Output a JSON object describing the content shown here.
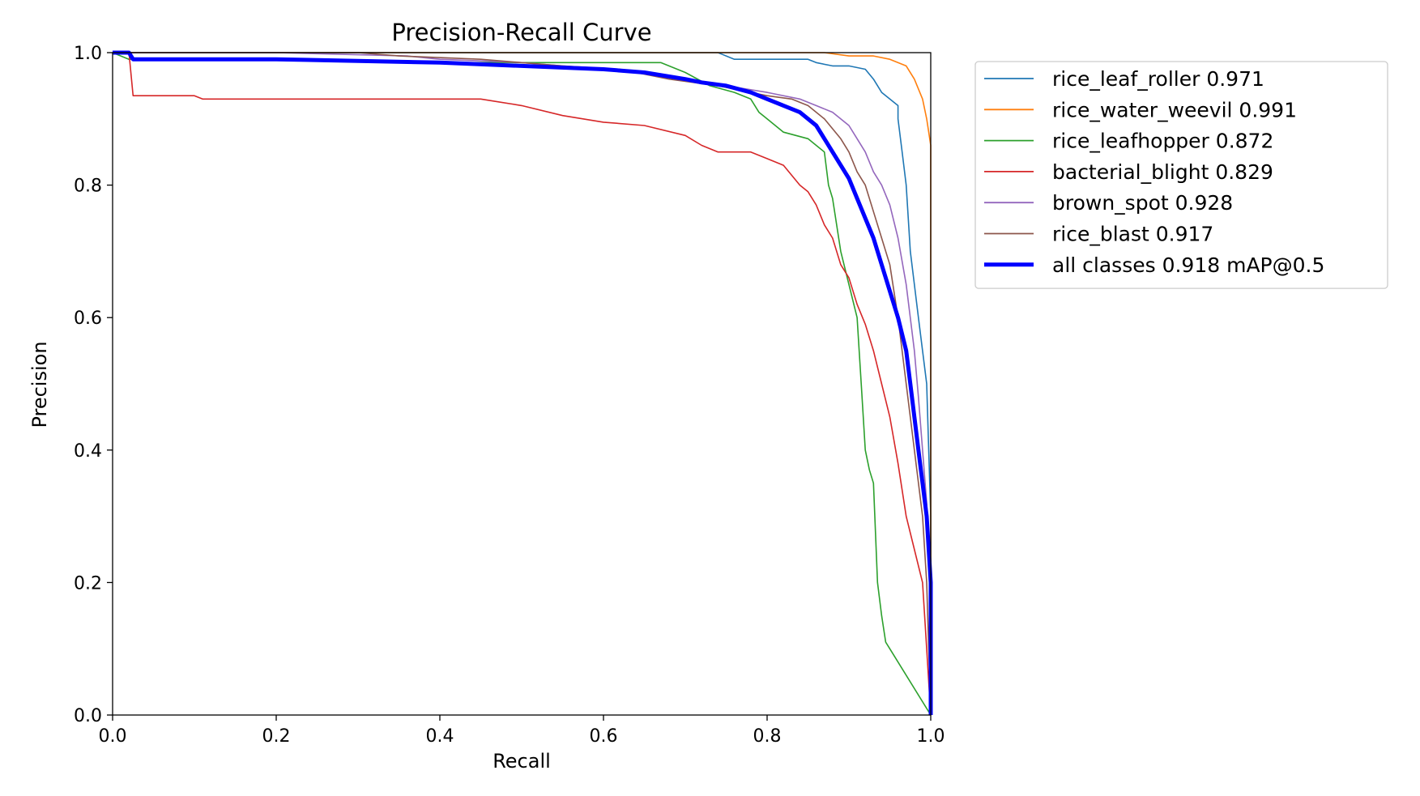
{
  "chart_data": {
    "type": "line",
    "title": "Precision-Recall Curve",
    "xlabel": "Recall",
    "ylabel": "Precision",
    "xlim": [
      0.0,
      1.0
    ],
    "ylim": [
      0.0,
      1.0
    ],
    "xticks": [
      "0.0",
      "0.2",
      "0.4",
      "0.6",
      "0.8",
      "1.0"
    ],
    "yticks": [
      "0.0",
      "0.2",
      "0.4",
      "0.6",
      "0.8",
      "1.0"
    ],
    "grid": false,
    "legend_position": "outside-right-top",
    "series": [
      {
        "name": "rice_leaf_roller 0.971",
        "color": "#1f77b4",
        "width": "thin",
        "points": [
          [
            0.0,
            1.0
          ],
          [
            0.74,
            1.0
          ],
          [
            0.76,
            0.99
          ],
          [
            0.85,
            0.99
          ],
          [
            0.86,
            0.985
          ],
          [
            0.88,
            0.98
          ],
          [
            0.9,
            0.98
          ],
          [
            0.92,
            0.975
          ],
          [
            0.93,
            0.96
          ],
          [
            0.94,
            0.94
          ],
          [
            0.95,
            0.93
          ],
          [
            0.96,
            0.92
          ],
          [
            0.96,
            0.9
          ],
          [
            0.965,
            0.85
          ],
          [
            0.97,
            0.8
          ],
          [
            0.975,
            0.7
          ],
          [
            0.98,
            0.65
          ],
          [
            0.985,
            0.6
          ],
          [
            0.99,
            0.55
          ],
          [
            0.995,
            0.5
          ],
          [
            1.0,
            0.3
          ],
          [
            1.0,
            0.0
          ]
        ]
      },
      {
        "name": "rice_water_weevil 0.991",
        "color": "#ff7f0e",
        "width": "thin",
        "points": [
          [
            0.0,
            1.0
          ],
          [
            0.87,
            1.0
          ],
          [
            0.9,
            0.995
          ],
          [
            0.93,
            0.995
          ],
          [
            0.95,
            0.99
          ],
          [
            0.97,
            0.98
          ],
          [
            0.98,
            0.96
          ],
          [
            0.99,
            0.93
          ],
          [
            0.995,
            0.9
          ],
          [
            1.0,
            0.86
          ],
          [
            1.0,
            0.5
          ],
          [
            1.0,
            0.3
          ],
          [
            1.0,
            0.0
          ]
        ]
      },
      {
        "name": "rice_leafhopper 0.872",
        "color": "#2ca02c",
        "width": "thin",
        "points": [
          [
            0.0,
            1.0
          ],
          [
            0.02,
            0.99
          ],
          [
            0.2,
            0.99
          ],
          [
            0.4,
            0.985
          ],
          [
            0.6,
            0.985
          ],
          [
            0.67,
            0.985
          ],
          [
            0.7,
            0.97
          ],
          [
            0.73,
            0.95
          ],
          [
            0.76,
            0.94
          ],
          [
            0.78,
            0.93
          ],
          [
            0.79,
            0.91
          ],
          [
            0.8,
            0.9
          ],
          [
            0.82,
            0.88
          ],
          [
            0.85,
            0.87
          ],
          [
            0.86,
            0.86
          ],
          [
            0.87,
            0.85
          ],
          [
            0.875,
            0.8
          ],
          [
            0.88,
            0.78
          ],
          [
            0.89,
            0.7
          ],
          [
            0.9,
            0.65
          ],
          [
            0.91,
            0.6
          ],
          [
            0.915,
            0.5
          ],
          [
            0.92,
            0.4
          ],
          [
            0.925,
            0.37
          ],
          [
            0.93,
            0.35
          ],
          [
            0.935,
            0.2
          ],
          [
            0.94,
            0.15
          ],
          [
            0.945,
            0.11
          ],
          [
            0.95,
            0.1
          ],
          [
            1.0,
            0.0
          ]
        ]
      },
      {
        "name": "bacterial_blight 0.829",
        "color": "#d62728",
        "width": "thin",
        "points": [
          [
            0.0,
            1.0
          ],
          [
            0.02,
            1.0
          ],
          [
            0.025,
            0.935
          ],
          [
            0.1,
            0.935
          ],
          [
            0.11,
            0.93
          ],
          [
            0.45,
            0.93
          ],
          [
            0.5,
            0.92
          ],
          [
            0.55,
            0.905
          ],
          [
            0.6,
            0.895
          ],
          [
            0.65,
            0.89
          ],
          [
            0.7,
            0.875
          ],
          [
            0.72,
            0.86
          ],
          [
            0.74,
            0.85
          ],
          [
            0.78,
            0.85
          ],
          [
            0.8,
            0.84
          ],
          [
            0.82,
            0.83
          ],
          [
            0.84,
            0.8
          ],
          [
            0.85,
            0.79
          ],
          [
            0.86,
            0.77
          ],
          [
            0.87,
            0.74
          ],
          [
            0.88,
            0.72
          ],
          [
            0.89,
            0.68
          ],
          [
            0.9,
            0.66
          ],
          [
            0.91,
            0.62
          ],
          [
            0.92,
            0.59
          ],
          [
            0.93,
            0.55
          ],
          [
            0.94,
            0.5
          ],
          [
            0.95,
            0.45
          ],
          [
            0.96,
            0.38
          ],
          [
            0.97,
            0.3
          ],
          [
            0.98,
            0.25
          ],
          [
            0.99,
            0.2
          ],
          [
            0.995,
            0.1
          ],
          [
            1.0,
            0.0
          ]
        ]
      },
      {
        "name": "brown_spot 0.928",
        "color": "#9467bd",
        "width": "thin",
        "points": [
          [
            0.0,
            1.0
          ],
          [
            0.2,
            1.0
          ],
          [
            0.36,
            0.995
          ],
          [
            0.4,
            0.99
          ],
          [
            0.5,
            0.985
          ],
          [
            0.6,
            0.975
          ],
          [
            0.65,
            0.97
          ],
          [
            0.7,
            0.96
          ],
          [
            0.75,
            0.95
          ],
          [
            0.8,
            0.94
          ],
          [
            0.84,
            0.93
          ],
          [
            0.86,
            0.92
          ],
          [
            0.88,
            0.91
          ],
          [
            0.9,
            0.89
          ],
          [
            0.91,
            0.87
          ],
          [
            0.92,
            0.85
          ],
          [
            0.93,
            0.82
          ],
          [
            0.94,
            0.8
          ],
          [
            0.95,
            0.77
          ],
          [
            0.96,
            0.72
          ],
          [
            0.97,
            0.65
          ],
          [
            0.98,
            0.55
          ],
          [
            0.985,
            0.48
          ],
          [
            0.99,
            0.4
          ],
          [
            0.995,
            0.32
          ],
          [
            1.0,
            0.2
          ],
          [
            1.0,
            0.0
          ]
        ]
      },
      {
        "name": "rice_blast 0.917",
        "color": "#8c564b",
        "width": "thin",
        "points": [
          [
            0.0,
            1.0
          ],
          [
            0.3,
            1.0
          ],
          [
            0.35,
            0.995
          ],
          [
            0.45,
            0.99
          ],
          [
            0.55,
            0.98
          ],
          [
            0.62,
            0.975
          ],
          [
            0.68,
            0.96
          ],
          [
            0.74,
            0.95
          ],
          [
            0.78,
            0.94
          ],
          [
            0.8,
            0.935
          ],
          [
            0.83,
            0.93
          ],
          [
            0.85,
            0.92
          ],
          [
            0.87,
            0.9
          ],
          [
            0.89,
            0.87
          ],
          [
            0.9,
            0.85
          ],
          [
            0.91,
            0.82
          ],
          [
            0.92,
            0.8
          ],
          [
            0.93,
            0.76
          ],
          [
            0.94,
            0.72
          ],
          [
            0.95,
            0.68
          ],
          [
            0.96,
            0.6
          ],
          [
            0.97,
            0.5
          ],
          [
            0.98,
            0.4
          ],
          [
            0.99,
            0.3
          ],
          [
            0.995,
            0.2
          ],
          [
            1.0,
            0.0
          ]
        ]
      },
      {
        "name": "all classes 0.918 mAP@0.5",
        "color": "#0000ff",
        "width": "thick",
        "points": [
          [
            0.0,
            1.0
          ],
          [
            0.02,
            1.0
          ],
          [
            0.025,
            0.99
          ],
          [
            0.1,
            0.99
          ],
          [
            0.2,
            0.99
          ],
          [
            0.4,
            0.985
          ],
          [
            0.5,
            0.98
          ],
          [
            0.6,
            0.975
          ],
          [
            0.65,
            0.97
          ],
          [
            0.7,
            0.96
          ],
          [
            0.72,
            0.955
          ],
          [
            0.75,
            0.95
          ],
          [
            0.78,
            0.94
          ],
          [
            0.8,
            0.93
          ],
          [
            0.82,
            0.92
          ],
          [
            0.84,
            0.91
          ],
          [
            0.86,
            0.89
          ],
          [
            0.87,
            0.87
          ],
          [
            0.88,
            0.85
          ],
          [
            0.89,
            0.83
          ],
          [
            0.9,
            0.81
          ],
          [
            0.91,
            0.78
          ],
          [
            0.92,
            0.75
          ],
          [
            0.93,
            0.72
          ],
          [
            0.94,
            0.68
          ],
          [
            0.95,
            0.64
          ],
          [
            0.96,
            0.6
          ],
          [
            0.97,
            0.55
          ],
          [
            0.975,
            0.5
          ],
          [
            0.98,
            0.45
          ],
          [
            0.985,
            0.4
          ],
          [
            0.99,
            0.35
          ],
          [
            0.995,
            0.3
          ],
          [
            1.0,
            0.2
          ],
          [
            1.0,
            0.0
          ]
        ]
      }
    ]
  }
}
